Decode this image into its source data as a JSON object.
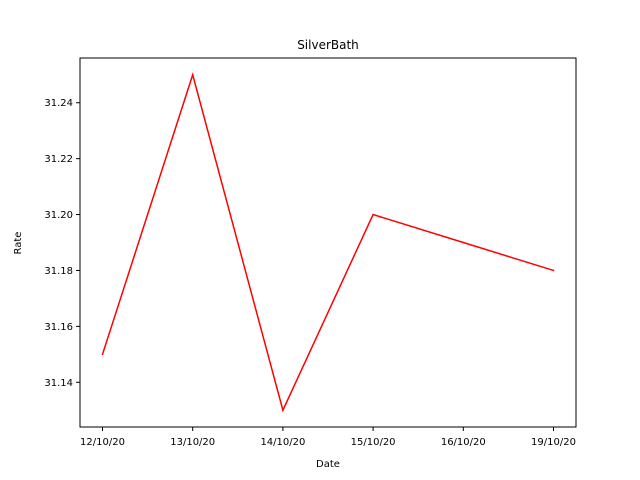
{
  "chart_data": {
    "type": "line",
    "title": "SilverBath",
    "xlabel": "Date",
    "ylabel": "Rate",
    "categories": [
      "12/10/20",
      "13/10/20",
      "14/10/20",
      "15/10/20",
      "16/10/20",
      "19/10/20"
    ],
    "series": [
      {
        "values": [
          31.15,
          31.25,
          31.13,
          31.2,
          31.19,
          31.18
        ],
        "color": "#ff0000"
      }
    ],
    "y_ticks": [
      "31.14",
      "31.16",
      "31.18",
      "31.20",
      "31.22",
      "31.24"
    ],
    "ylim": [
      31.124,
      31.256
    ],
    "grid": false,
    "legend": "none"
  }
}
